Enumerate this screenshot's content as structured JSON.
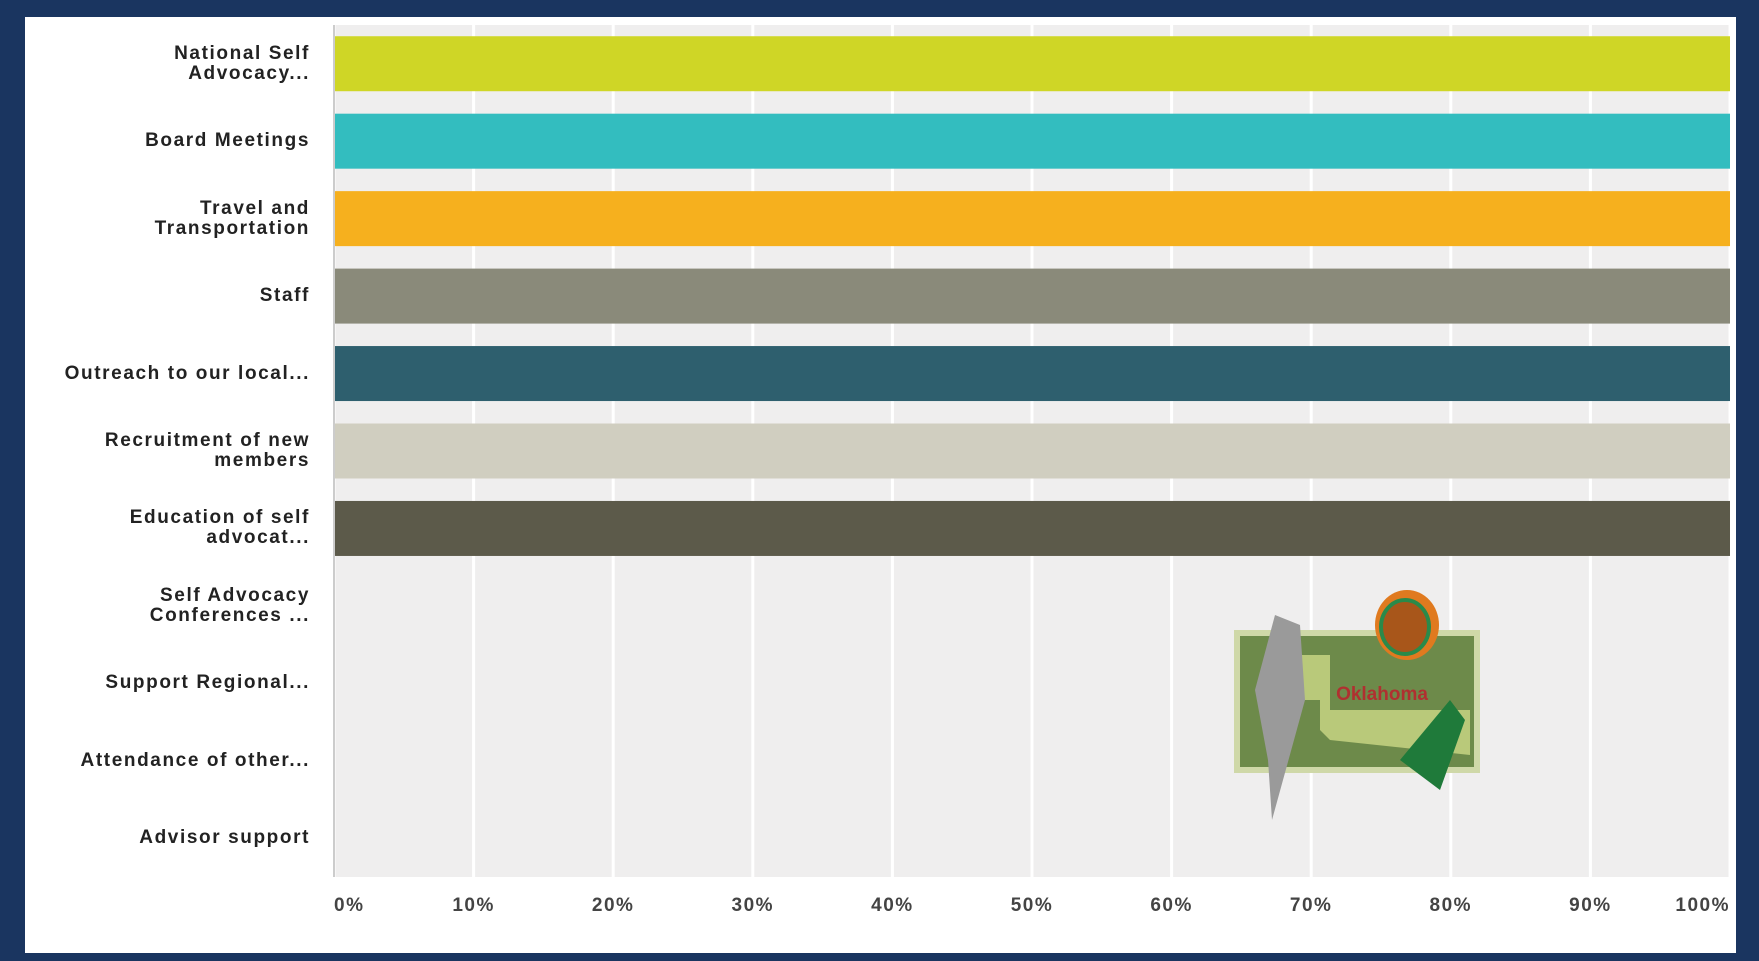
{
  "chart_data": {
    "type": "hbar",
    "categories": [
      "National Self Advocacy...",
      "Board Meetings",
      "Travel and Transportation",
      "Staff",
      "Outreach to our local...",
      "Recruitment of new members",
      "Education of self advocat...",
      "Self Advocacy Conferences ...",
      "Support Regional...",
      "Attendance of other...",
      "Advisor support"
    ],
    "values": [
      100,
      100,
      100,
      100,
      100,
      100,
      100,
      0,
      0,
      0,
      0
    ],
    "colors": [
      "#cfd626",
      "#33bdbf",
      "#f6b01e",
      "#8a8a7a",
      "#2e5f6e",
      "#d0cec0",
      "#5c5a4a",
      "#8a8a7a",
      "#8a8a7a",
      "#8a8a7a",
      "#8a8a7a"
    ],
    "xlim": [
      0,
      100
    ],
    "xticks": [
      {
        "value": 0,
        "label": "0%"
      },
      {
        "value": 10,
        "label": "10%"
      },
      {
        "value": 20,
        "label": "20%"
      },
      {
        "value": 30,
        "label": "30%"
      },
      {
        "value": 40,
        "label": "40%"
      },
      {
        "value": 50,
        "label": "50%"
      },
      {
        "value": 60,
        "label": "60%"
      },
      {
        "value": 70,
        "label": "70%"
      },
      {
        "value": 80,
        "label": "80%"
      },
      {
        "value": 90,
        "label": "90%"
      },
      {
        "value": 100,
        "label": "100%"
      }
    ],
    "grid": true
  },
  "image_label": "Oklahoma"
}
